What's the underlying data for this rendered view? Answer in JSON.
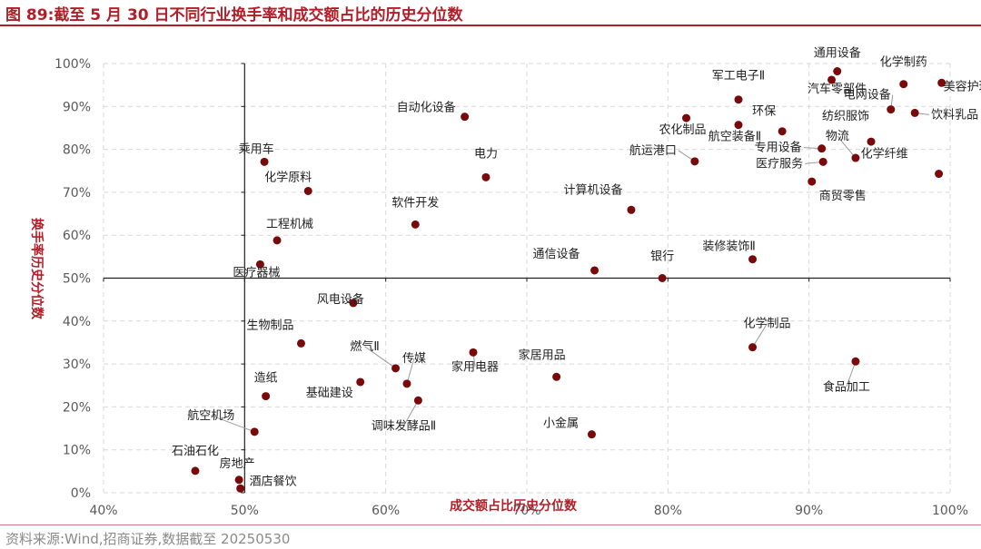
{
  "title": "图 89:截至 5 月 30 日不同行业换手率和成交额占比的历史分位数",
  "source": "资料来源:Wind,招商证券,数据截至 20250530",
  "colors": {
    "accent": "#b21d28",
    "point": "#7a0a0a",
    "grid": "#d9d9d9",
    "axis": "#222222",
    "tick": "#595959"
  },
  "chart_data": {
    "type": "scatter",
    "xlabel": "成交额占比历史分位数",
    "ylabel": "换手率历史分位数",
    "xlim": [
      0.4,
      1.0
    ],
    "ylim": [
      0.0,
      1.0
    ],
    "x_ticks": [
      0.4,
      0.5,
      0.6,
      0.7,
      0.8,
      0.9,
      1.0
    ],
    "y_ticks": [
      0.0,
      0.1,
      0.2,
      0.3,
      0.4,
      0.5,
      0.6,
      0.7,
      0.8,
      0.9,
      1.0
    ],
    "x_tick_labels": [
      "40%",
      "50%",
      "60%",
      "70%",
      "80%",
      "90%",
      "100%"
    ],
    "y_tick_labels": [
      "0%",
      "10%",
      "20%",
      "30%",
      "40%",
      "50%",
      "60%",
      "70%",
      "80%",
      "90%",
      "100%"
    ],
    "grid": true,
    "crosshair": {
      "x": 0.5,
      "y": 0.5
    },
    "points": [
      {
        "name": "通用设备",
        "x": 0.92,
        "y": 0.982
      },
      {
        "name": "化学制药",
        "x": 0.967,
        "y": 0.952
      },
      {
        "name": "美容护理",
        "x": 0.994,
        "y": 0.955
      },
      {
        "name": "汽车零部件",
        "x": 0.916,
        "y": 0.962
      },
      {
        "name": "电网设备",
        "x": 0.958,
        "y": 0.893
      },
      {
        "name": "饮料乳品",
        "x": 0.975,
        "y": 0.885
      },
      {
        "name": "军工电子Ⅱ",
        "x": 0.85,
        "y": 0.916
      },
      {
        "name": "环保",
        "x": 0.881,
        "y": 0.842
      },
      {
        "name": "航空装备Ⅱ",
        "x": 0.85,
        "y": 0.857
      },
      {
        "name": "农化制品",
        "x": 0.813,
        "y": 0.873
      },
      {
        "name": "专用设备",
        "x": 0.909,
        "y": 0.802
      },
      {
        "name": "纺织服饰",
        "x": 0.944,
        "y": 0.818
      },
      {
        "name": "航运港口",
        "x": 0.819,
        "y": 0.772
      },
      {
        "name": "医疗服务",
        "x": 0.91,
        "y": 0.771
      },
      {
        "name": "物流",
        "x": 0.933,
        "y": 0.78
      },
      {
        "name": "化学纤维",
        "x": 0.992,
        "y": 0.743
      },
      {
        "name": "商贸零售",
        "x": 0.902,
        "y": 0.725
      },
      {
        "name": "自动化设备",
        "x": 0.656,
        "y": 0.876
      },
      {
        "name": "电力",
        "x": 0.671,
        "y": 0.735
      },
      {
        "name": "计算机设备",
        "x": 0.774,
        "y": 0.659
      },
      {
        "name": "软件开发",
        "x": 0.621,
        "y": 0.625
      },
      {
        "name": "乘用车",
        "x": 0.514,
        "y": 0.771
      },
      {
        "name": "化学原料",
        "x": 0.545,
        "y": 0.703
      },
      {
        "name": "工程机械",
        "x": 0.523,
        "y": 0.588
      },
      {
        "name": "医疗器械",
        "x": 0.511,
        "y": 0.532
      },
      {
        "name": "通信设备",
        "x": 0.748,
        "y": 0.518
      },
      {
        "name": "银行",
        "x": 0.796,
        "y": 0.5
      },
      {
        "name": "装修装饰Ⅱ",
        "x": 0.86,
        "y": 0.544
      },
      {
        "name": "风电设备",
        "x": 0.577,
        "y": 0.442
      },
      {
        "name": "生物制品",
        "x": 0.54,
        "y": 0.348
      },
      {
        "name": "燃气Ⅱ",
        "x": 0.607,
        "y": 0.29
      },
      {
        "name": "传媒",
        "x": 0.615,
        "y": 0.254
      },
      {
        "name": "家用电器",
        "x": 0.662,
        "y": 0.327
      },
      {
        "name": "家居用品",
        "x": 0.721,
        "y": 0.27
      },
      {
        "name": "化学制品",
        "x": 0.86,
        "y": 0.339
      },
      {
        "name": "食品加工",
        "x": 0.933,
        "y": 0.306
      },
      {
        "name": "造纸",
        "x": 0.515,
        "y": 0.225
      },
      {
        "name": "基础建设",
        "x": 0.582,
        "y": 0.258
      },
      {
        "name": "调味发酵品Ⅱ",
        "x": 0.623,
        "y": 0.215
      },
      {
        "name": "航空机场",
        "x": 0.507,
        "y": 0.142
      },
      {
        "name": "小金属",
        "x": 0.746,
        "y": 0.136
      },
      {
        "name": "石油石化",
        "x": 0.465,
        "y": 0.051
      },
      {
        "name": "房地产",
        "x": 0.496,
        "y": 0.03
      },
      {
        "name": "酒店餐饮",
        "x": 0.497,
        "y": 0.01
      }
    ]
  }
}
